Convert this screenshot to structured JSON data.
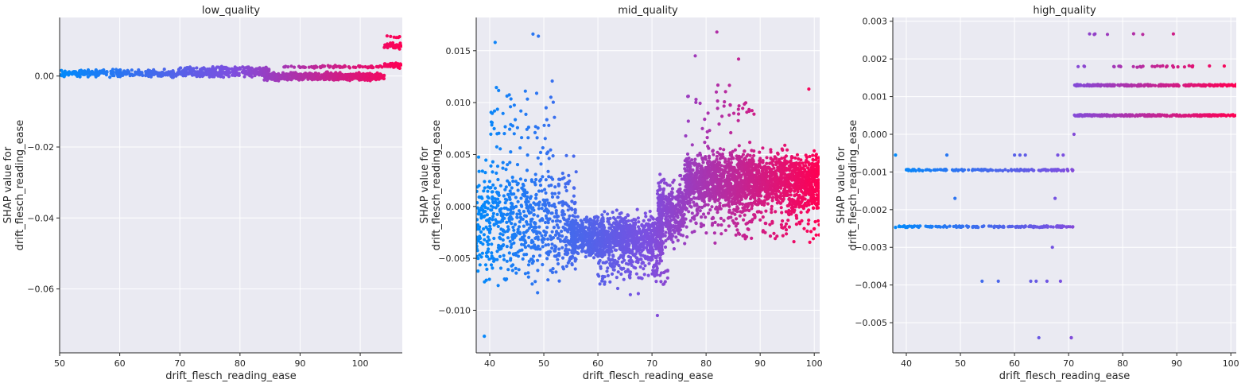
{
  "chart_data": [
    {
      "type": "scatter",
      "title": "low_quality",
      "xlabel": "drift_flesch_reading_ease",
      "ylabel": "SHAP value for\ndrift_flesch_reading_ease",
      "xlim": [
        50,
        107
      ],
      "ylim": [
        -0.078,
        0.0165
      ],
      "xticks": [
        50,
        60,
        70,
        80,
        90,
        100
      ],
      "yticks": [
        0.0,
        -0.02,
        -0.04,
        -0.06
      ],
      "ytick_labels": [
        "0.00",
        "−0.02",
        "−0.04",
        "−0.06"
      ],
      "color_scale": [
        "#008afb",
        "#7c4fe0",
        "#ff0052"
      ],
      "color_feature_range": [
        50,
        107
      ],
      "grid": true,
      "clusters": [
        {
          "x": [
            50,
            85
          ],
          "y_center": 0.0008,
          "y_spread": 0.0008,
          "n": 500
        },
        {
          "x": [
            70,
            85
          ],
          "y_center": 0.0021,
          "y_spread": 0.0004,
          "n": 90
        },
        {
          "x": [
            84,
            104
          ],
          "y_center": -0.0002,
          "y_spread": 0.0009,
          "n": 600
        },
        {
          "x": [
            87,
            104
          ],
          "y_center": 0.0026,
          "y_spread": 0.0003,
          "n": 70
        },
        {
          "x": [
            104,
            107
          ],
          "y_center": 0.003,
          "y_spread": 0.0006,
          "n": 50
        },
        {
          "x": [
            104,
            107
          ],
          "y_center": 0.0085,
          "y_spread": 0.0006,
          "n": 30
        },
        {
          "x": [
            104,
            107
          ],
          "y_center": 0.011,
          "y_spread": 0.0005,
          "n": 6
        }
      ]
    },
    {
      "type": "scatter",
      "title": "mid_quality",
      "xlabel": "drift_flesch_reading_ease",
      "ylabel": "SHAP value for\ndrift_flesch_reading_ease",
      "xlim": [
        37.5,
        101
      ],
      "ylim": [
        -0.0141,
        0.0182
      ],
      "xticks": [
        40,
        50,
        60,
        70,
        80,
        90,
        100
      ],
      "yticks": [
        0.015,
        0.01,
        0.005,
        0.0,
        -0.005,
        -0.01
      ],
      "ytick_labels": [
        "0.015",
        "0.010",
        "0.005",
        "0.000",
        "−0.005",
        "−0.010"
      ],
      "color_scale": [
        "#008afb",
        "#7c4fe0",
        "#ff0052"
      ],
      "color_feature_range": [
        37.5,
        101
      ],
      "grid": true,
      "clusters": [
        {
          "x": [
            37.5,
            56
          ],
          "y_center": -0.0015,
          "y_spread": 0.0045,
          "n": 700
        },
        {
          "x": [
            40,
            52
          ],
          "y_center": 0.008,
          "y_spread": 0.003,
          "n": 60
        },
        {
          "x": [
            55,
            72
          ],
          "y_center": -0.003,
          "y_spread": 0.0018,
          "n": 1100
        },
        {
          "x": [
            60,
            73
          ],
          "y_center": -0.006,
          "y_spread": 0.0015,
          "n": 120
        },
        {
          "x": [
            71,
            76
          ],
          "y_center": -0.0005,
          "y_spread": 0.0025,
          "n": 350
        },
        {
          "x": [
            76,
            101
          ],
          "y_center": 0.0025,
          "y_spread": 0.0022,
          "n": 1900
        },
        {
          "x": [
            76,
            101
          ],
          "y_center": -0.001,
          "y_spread": 0.0022,
          "n": 200
        },
        {
          "x": [
            76,
            90
          ],
          "y_center": 0.009,
          "y_spread": 0.0025,
          "n": 40
        }
      ],
      "outliers": [
        {
          "x": 48,
          "y": 0.0166
        },
        {
          "x": 49,
          "y": 0.0164
        },
        {
          "x": 82,
          "y": 0.0168
        },
        {
          "x": 78,
          "y": 0.0145
        },
        {
          "x": 41,
          "y": 0.0158
        },
        {
          "x": 39,
          "y": -0.0125
        },
        {
          "x": 71,
          "y": -0.0105
        },
        {
          "x": 66,
          "y": -0.0085
        },
        {
          "x": 99,
          "y": 0.0113
        },
        {
          "x": 86,
          "y": 0.0142
        }
      ]
    },
    {
      "type": "scatter",
      "title": "high_quality",
      "xlabel": "drift_flesch_reading_ease",
      "ylabel": "SHAP value for\ndrift_flesch_reading_ease",
      "xlim": [
        37.5,
        101
      ],
      "ylim": [
        -0.0058,
        0.0031
      ],
      "xticks": [
        40,
        50,
        60,
        70,
        80,
        90,
        100
      ],
      "yticks": [
        0.003,
        0.002,
        0.001,
        0.0,
        -0.001,
        -0.002,
        -0.003,
        -0.004,
        -0.005
      ],
      "ytick_labels": [
        "0.003",
        "0.002",
        "0.001",
        "0.000",
        "−0.001",
        "−0.002",
        "−0.003",
        "−0.004",
        "−0.005"
      ],
      "color_scale": [
        "#008afb",
        "#7c4fe0",
        "#ff0052"
      ],
      "color_feature_range": [
        37.5,
        101
      ],
      "grid": true,
      "levels": [
        {
          "x": [
            40,
            71
          ],
          "y": -0.00095,
          "n": 140
        },
        {
          "x": [
            38,
            71
          ],
          "y": -0.00245,
          "n": 150
        },
        {
          "x": [
            71,
            101
          ],
          "y": 0.0013,
          "n": 260
        },
        {
          "x": [
            71,
            101
          ],
          "y": 0.0005,
          "n": 260
        },
        {
          "x": [
            71,
            100
          ],
          "y": 0.0018,
          "n": 30
        },
        {
          "x": [
            72,
            96
          ],
          "y": 0.00265,
          "n": 7
        }
      ],
      "outliers": [
        {
          "x": 38,
          "y": -0.00055
        },
        {
          "x": 47.5,
          "y": -0.00055
        },
        {
          "x": 49,
          "y": -0.0017
        },
        {
          "x": 54,
          "y": -0.0039
        },
        {
          "x": 57,
          "y": -0.0039
        },
        {
          "x": 63,
          "y": -0.0039
        },
        {
          "x": 64,
          "y": -0.0039
        },
        {
          "x": 66,
          "y": -0.0039
        },
        {
          "x": 68.5,
          "y": -0.0039
        },
        {
          "x": 64.5,
          "y": -0.0054
        },
        {
          "x": 70.5,
          "y": -0.0054
        },
        {
          "x": 67,
          "y": -0.003
        },
        {
          "x": 67.5,
          "y": -0.0017
        },
        {
          "x": 71,
          "y": 0.0
        },
        {
          "x": 60,
          "y": -0.00055
        },
        {
          "x": 61,
          "y": -0.00055
        },
        {
          "x": 62,
          "y": -0.00055
        },
        {
          "x": 68,
          "y": -0.00055
        },
        {
          "x": 69,
          "y": -0.00055
        },
        {
          "x": 70.5,
          "y": -0.0054
        }
      ]
    }
  ]
}
